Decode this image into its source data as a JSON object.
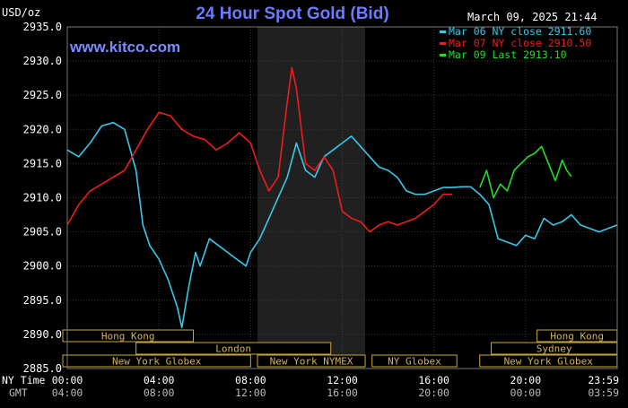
{
  "chart_data": {
    "type": "line",
    "title": "24 Hour Spot Gold (Bid)",
    "ylabel": "USD/oz",
    "brand": "www.kitco.com",
    "timestamp": "March 09, 2025 21:44",
    "ylim": [
      2885.0,
      2935.0
    ],
    "y_ticks": [
      "2935.0",
      "2930.0",
      "2925.0",
      "2920.0",
      "2915.0",
      "2910.0",
      "2905.0",
      "2900.0",
      "2895.0",
      "2890.0",
      "2885.0"
    ],
    "x_axis": {
      "row1_label": "NY Time",
      "row2_label": "GMT",
      "row1_ticks": [
        "00:00",
        "04:00",
        "08:00",
        "12:00",
        "16:00",
        "20:00",
        "23:59"
      ],
      "row2_ticks": [
        "04:00",
        "08:00",
        "12:00",
        "16:00",
        "20:00",
        "00:00",
        "03:59"
      ]
    },
    "legend": {
      "placement": "top-right",
      "entries": [
        {
          "label": "Mar 06 NY close 2911.60",
          "color": "#38c8ea"
        },
        {
          "label": "Mar 07 NY close 2910.50",
          "color": "#ee1c1c"
        },
        {
          "label": "Mar 09 Last 2913.10",
          "color": "#22dd22"
        }
      ]
    },
    "sessions": [
      {
        "label": "Hong Kong",
        "start": -0.5,
        "end": 5.5,
        "row": 0
      },
      {
        "label": "London",
        "start": 3.0,
        "end": 11.5,
        "row": 1
      },
      {
        "label": "New York Globex",
        "start": -0.5,
        "end": 8.0,
        "row": 2
      },
      {
        "label": "New York NYMEX",
        "start": 8.3,
        "end": 13.0,
        "row": 2
      },
      {
        "label": "NY Globex",
        "start": 13.3,
        "end": 17.0,
        "row": 2
      },
      {
        "label": "Hong Kong",
        "start": 20.5,
        "end": 23.99,
        "row": 0
      },
      {
        "label": "Sydney",
        "start": 18.5,
        "end": 23.99,
        "row": 1
      },
      {
        "label": "New York Globex",
        "start": 18.0,
        "end": 23.99,
        "row": 2
      }
    ],
    "shaded_hours": [
      8.3,
      13.0
    ],
    "series": [
      {
        "name": "Mar 06 NY close 2911.60",
        "color": "#38c8ea",
        "x": [
          0,
          0.5,
          1.0,
          1.5,
          2.0,
          2.5,
          3.0,
          3.3,
          3.6,
          4.0,
          4.4,
          4.8,
          5.0,
          5.3,
          5.6,
          5.8,
          6.2,
          6.6,
          7.0,
          7.4,
          7.8,
          8.0,
          8.4,
          8.8,
          9.2,
          9.6,
          10.0,
          10.4,
          10.8,
          11.2,
          11.6,
          12.0,
          12.4,
          12.8,
          13.2,
          13.6,
          14.0,
          14.4,
          14.8,
          15.2,
          15.6,
          16.0,
          16.4,
          16.8,
          17.2,
          17.6,
          18.0,
          18.4,
          18.8,
          19.2,
          19.6,
          20.0,
          20.4,
          20.8,
          21.2,
          21.6,
          22.0,
          22.4,
          22.8,
          23.2,
          23.6,
          23.99
        ],
        "values": [
          2917,
          2916,
          2918,
          2920.5,
          2921,
          2920,
          2914,
          2906,
          2903,
          2901,
          2898,
          2894,
          2891,
          2897,
          2902,
          2900,
          2904,
          2903,
          2902,
          2901,
          2900,
          2902,
          2904,
          2907,
          2910,
          2913,
          2918,
          2914,
          2913,
          2916,
          2917,
          2918,
          2919,
          2917.5,
          2916,
          2914.5,
          2914,
          2913,
          2911,
          2910.5,
          2910.5,
          2911,
          2911.5,
          2911.5,
          2911.6,
          2911.6,
          2910.5,
          2909,
          2904,
          2903.5,
          2903,
          2904.5,
          2904,
          2907,
          2906,
          2906.5,
          2907.5,
          2906,
          2905.5,
          2905,
          2905.5,
          2906
        ]
      },
      {
        "name": "Mar 07 NY close 2910.50",
        "color": "#ee1c1c",
        "x": [
          0,
          0.5,
          1.0,
          1.5,
          2.0,
          2.5,
          3.0,
          3.5,
          4.0,
          4.5,
          5.0,
          5.5,
          6.0,
          6.5,
          7.0,
          7.5,
          8.0,
          8.4,
          8.8,
          9.2,
          9.6,
          9.8,
          10.0,
          10.4,
          10.8,
          11.2,
          11.6,
          12.0,
          12.4,
          12.8,
          13.2,
          13.6,
          14.0,
          14.4,
          14.8,
          15.2,
          15.6,
          16.0,
          16.4,
          16.8
        ],
        "values": [
          2906,
          2909,
          2911,
          2912,
          2913,
          2914,
          2917,
          2920,
          2922.5,
          2922,
          2920,
          2919,
          2918.5,
          2917,
          2918,
          2919.5,
          2918,
          2914,
          2911,
          2913,
          2924,
          2929,
          2926,
          2915,
          2914,
          2916,
          2914,
          2908,
          2907,
          2906.5,
          2905,
          2906,
          2906.5,
          2906,
          2906.5,
          2907,
          2908,
          2909,
          2910.5,
          2910.5
        ]
      },
      {
        "name": "Mar 09 Last 2913.10",
        "color": "#22dd22",
        "x": [
          18.0,
          18.3,
          18.6,
          18.9,
          19.2,
          19.5,
          19.8,
          20.1,
          20.4,
          20.7,
          21.0,
          21.3,
          21.6,
          21.8,
          22.0
        ],
        "values": [
          2911.5,
          2914,
          2910,
          2912,
          2911,
          2914,
          2915,
          2916,
          2916.5,
          2917.5,
          2915,
          2912.5,
          2915.5,
          2914,
          2913.1
        ]
      }
    ]
  }
}
